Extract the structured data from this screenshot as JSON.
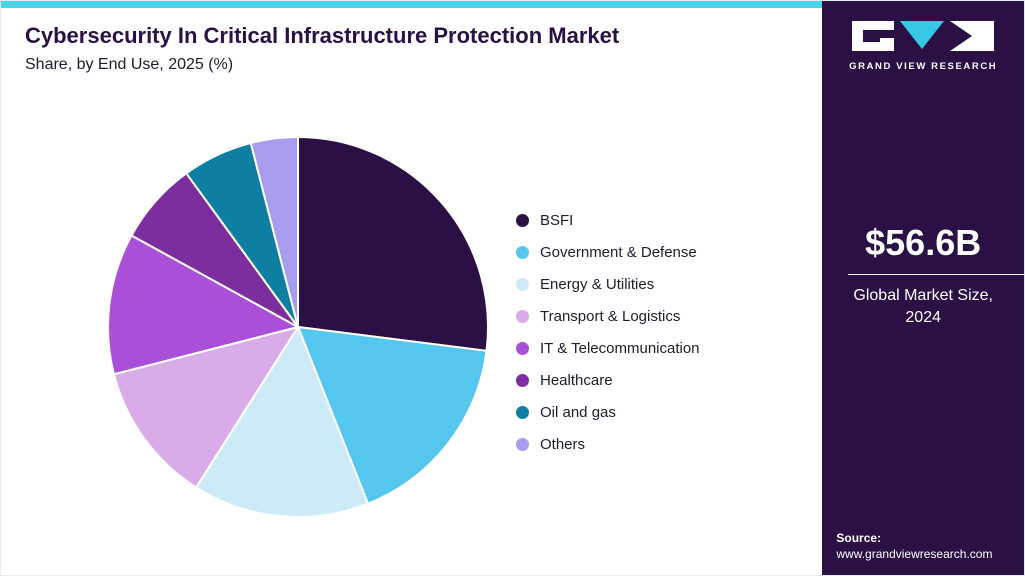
{
  "header": {
    "title": "Cybersecurity In Critical Infrastructure Protection Market",
    "subtitle": "Share, by End Use, 2025 (%)"
  },
  "sidebar": {
    "brand": "GRAND VIEW RESEARCH",
    "market_size": "$56.6B",
    "market_size_label": "Global Market Size, 2024",
    "source_label": "Source:",
    "source_url": "www.grandviewresearch.com",
    "background_color": "#2a1045",
    "accent_color": "#49d4e8"
  },
  "chart_data": {
    "type": "pie",
    "title": "Cybersecurity In Critical Infrastructure Protection Market Share, by End Use, 2025 (%)",
    "units": "%",
    "legend_position": "right",
    "categories": [
      "BSFI",
      "Government & Defense",
      "Energy & Utilities",
      "Transport & Logistics",
      "IT & Telecommunication",
      "Healthcare",
      "Oil and gas",
      "Others"
    ],
    "values": [
      27,
      17,
      15,
      12,
      12,
      7,
      6,
      4
    ],
    "colors": [
      "#2a1045",
      "#55c6ee",
      "#cdeaf8",
      "#d9abe9",
      "#a94fd8",
      "#7c2d9e",
      "#0e7fa2",
      "#a89cee"
    ]
  }
}
